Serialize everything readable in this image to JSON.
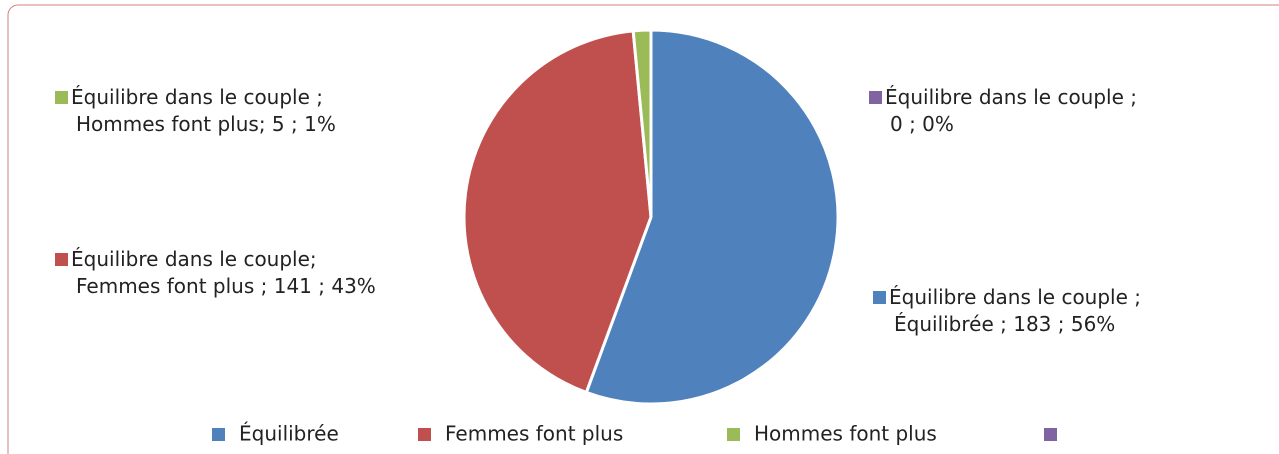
{
  "chart_data": {
    "type": "pie",
    "categories": [
      "Équilibrée",
      "Femmes font plus",
      "Hommes font plus",
      null
    ],
    "values": [
      183,
      141,
      5,
      0
    ],
    "value_labels": [
      "Équilibre dans le couple ;\nÉquilibrée ; 183 ; 56%",
      "Équilibre dans le couple;\nFemmes font plus ; 141 ; 43%",
      "Équilibre dans le couple ;\nHommes font plus; 5 ; 1%",
      "Équilibre dans le couple ;\n0 ; 0%"
    ],
    "colors": [
      "#4f81bd",
      "#c0504d",
      "#9bbb59",
      "#8064a2"
    ],
    "legend": "bottom"
  }
}
